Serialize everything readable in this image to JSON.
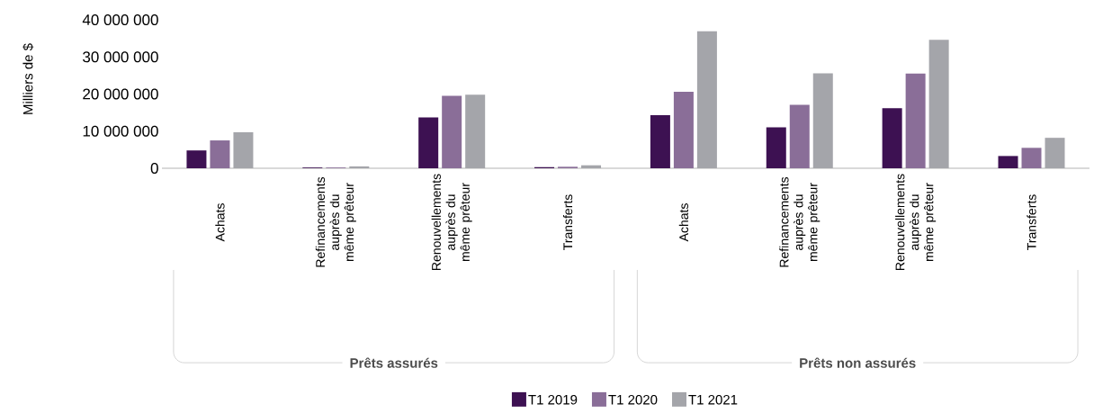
{
  "chart_data": {
    "type": "bar",
    "ylabel": "Milliers de $",
    "categories": [
      "Achats",
      "Refinancements auprès du même prêteur",
      "Renouvellements auprès du même prêteur",
      "Transferts",
      "Achats",
      "Refinancements auprès du même prêteur",
      "Renouvellements auprès du même prêteur",
      "Transferts"
    ],
    "series": [
      {
        "name": "T1 2019",
        "color": "#3d1152",
        "values": [
          4800000,
          200000,
          13700000,
          300000,
          14300000,
          11000000,
          16200000,
          3300000
        ]
      },
      {
        "name": "T1 2020",
        "color": "#8a6e98",
        "values": [
          7500000,
          200000,
          19500000,
          400000,
          20600000,
          17100000,
          25500000,
          5500000
        ]
      },
      {
        "name": "T1 2021",
        "color": "#a4a5aa",
        "values": [
          9700000,
          500000,
          19800000,
          800000,
          36900000,
          25600000,
          34600000,
          8200000
        ]
      }
    ],
    "ylim": [
      0,
      40000000
    ],
    "yticks": [
      {
        "value": 0,
        "label": "0"
      },
      {
        "value": 10000000,
        "label": "10 000 000"
      },
      {
        "value": 20000000,
        "label": "20 000 000"
      },
      {
        "value": 30000000,
        "label": "30 000 000"
      },
      {
        "value": 40000000,
        "label": "40 000 000"
      }
    ],
    "annotations": [
      "Prêts assurés",
      "Prêts non assurés"
    ],
    "grid": false,
    "legend": "bottom"
  }
}
